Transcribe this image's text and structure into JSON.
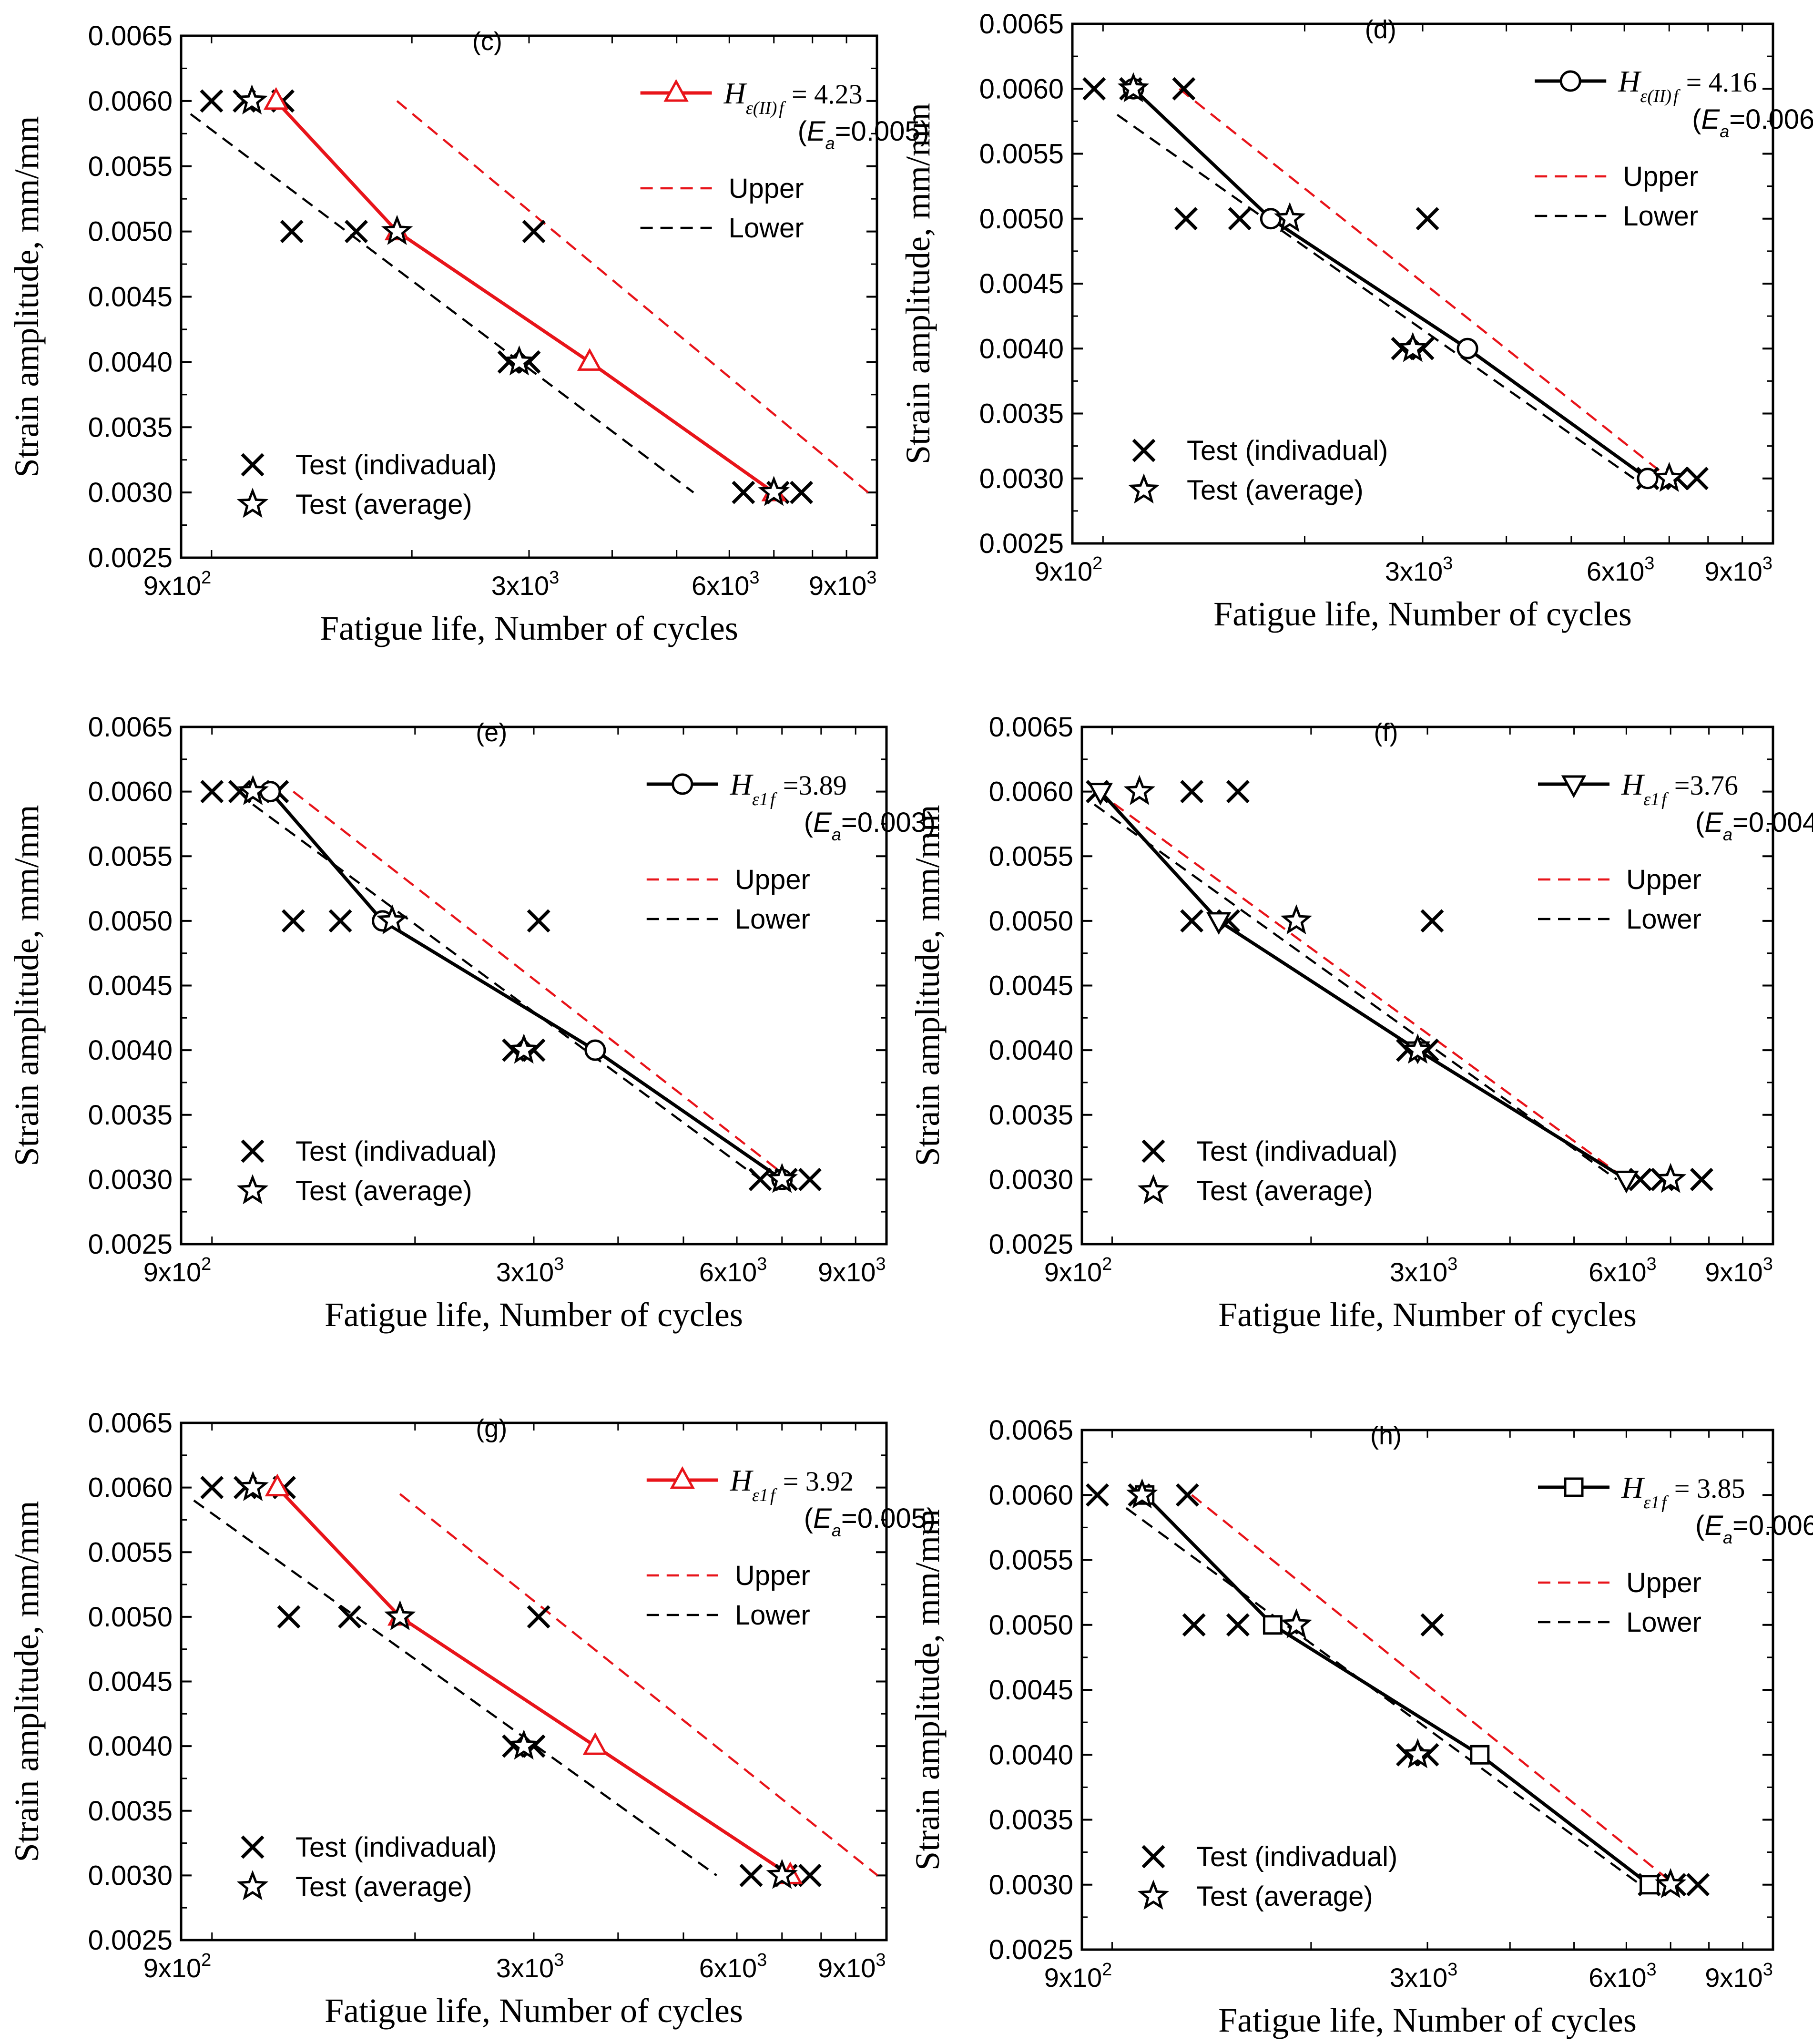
{
  "figure": {
    "shared": {
      "xlabel": "Fatigue life, Number of cycles",
      "ylabel": "Strain amplitude,  mm/mm",
      "ytick_labels": [
        "0.0025",
        "0.0030",
        "0.0035",
        "0.0040",
        "0.0045",
        "0.0050",
        "0.0055",
        "0.0060",
        "0.0065"
      ],
      "xtick_labels": [
        "9x10",
        "3x10",
        "6x10",
        "9x10"
      ],
      "xtick_exponents": [
        "2",
        "3",
        "3",
        "3"
      ],
      "legend_test_individual": "Test (indivadual)",
      "legend_test_average": "Test (average)",
      "legend_upper": "Upper",
      "legend_lower": "Lower",
      "ea_prefix": "(",
      "ea_symbol": "E",
      "ea_sub": "a",
      "ea_suffix": ")",
      "model_symbol": "H",
      "colors": {
        "black": "#000000",
        "red": "#e8141a"
      }
    }
  },
  "chart_data": [
    {
      "panel": "(c)",
      "type": "line",
      "xscale": "log",
      "xlim": [
        900,
        10000
      ],
      "ylim": [
        0.0025,
        0.0065
      ],
      "xlabel": "Fatigue life, Number of cycles",
      "ylabel": "Strain amplitude,  mm/mm",
      "model": {
        "label_sub": "ε(II)",
        "label_sub_tail": "f",
        "value": "= 4.23",
        "ea": "=0.005",
        "color": "red",
        "marker": "triangle-up",
        "x": [
          1250,
          1900,
          3700,
          7000
        ],
        "y": [
          0.006,
          0.005,
          0.004,
          0.003
        ]
      },
      "upper": {
        "x": [
          1900,
          9700
        ],
        "y": [
          0.006,
          0.003
        ]
      },
      "lower": {
        "x": [
          930,
          5300
        ],
        "y": [
          0.0059,
          0.003
        ]
      },
      "test_individual": {
        "x": [
          1000,
          1120,
          1280,
          1320,
          1650,
          3050,
          2800,
          3000,
          6300,
          7100,
          7700
        ],
        "y": [
          0.006,
          0.006,
          0.006,
          0.005,
          0.005,
          0.005,
          0.004,
          0.004,
          0.003,
          0.003,
          0.003
        ]
      },
      "test_average": {
        "x": [
          1150,
          1900,
          2900,
          7000
        ],
        "y": [
          0.006,
          0.005,
          0.004,
          0.003
        ]
      }
    },
    {
      "panel": "(d)",
      "type": "line",
      "xscale": "log",
      "xlim": [
        900,
        10000
      ],
      "ylim": [
        0.0025,
        0.0065
      ],
      "xlabel": "Fatigue life, Number of cycles",
      "ylabel": "Strain amplitude,  mm/mm",
      "model": {
        "label_sub": "ε(II)",
        "label_sub_tail": "f",
        "value": "= 4.16",
        "ea": "=0.006",
        "color": "black",
        "marker": "circle",
        "x": [
          1110,
          1780,
          3500,
          6500
        ],
        "y": [
          0.006,
          0.005,
          0.004,
          0.003
        ]
      },
      "upper": {
        "x": [
          1300,
          7000
        ],
        "y": [
          0.006,
          0.003
        ]
      },
      "lower": {
        "x": [
          1050,
          6200
        ],
        "y": [
          0.0058,
          0.003
        ]
      },
      "test_individual": {
        "x": [
          970,
          1100,
          1320,
          1330,
          1600,
          3050,
          2800,
          3000,
          6500,
          7200,
          7700
        ],
        "y": [
          0.006,
          0.006,
          0.006,
          0.005,
          0.005,
          0.005,
          0.004,
          0.004,
          0.003,
          0.003,
          0.003
        ]
      },
      "test_average": {
        "x": [
          1110,
          1900,
          2900,
          7000
        ],
        "y": [
          0.006,
          0.005,
          0.004,
          0.003
        ]
      }
    },
    {
      "panel": "(e)",
      "type": "line",
      "xscale": "log",
      "xlim": [
        900,
        10000
      ],
      "ylim": [
        0.0025,
        0.0065
      ],
      "xlabel": "Fatigue life, Number of cycles",
      "ylabel": "Strain amplitude,  mm/mm",
      "model": {
        "label_sub": "ε1",
        "label_sub_tail": "f",
        "value": "=3.89",
        "ea": "=0.003",
        "color": "black",
        "marker": "circle",
        "x": [
          1220,
          1790,
          3700,
          7000
        ],
        "y": [
          0.006,
          0.005,
          0.004,
          0.003
        ]
      },
      "upper": {
        "x": [
          1320,
          7200
        ],
        "y": [
          0.006,
          0.003
        ]
      },
      "lower": {
        "x": [
          1150,
          6500
        ],
        "y": [
          0.0059,
          0.003
        ]
      },
      "test_individual": {
        "x": [
          1000,
          1100,
          1250,
          1320,
          1550,
          3050,
          2800,
          3000,
          6500,
          7100,
          7700
        ],
        "y": [
          0.006,
          0.006,
          0.006,
          0.005,
          0.005,
          0.005,
          0.004,
          0.004,
          0.003,
          0.003,
          0.003
        ]
      },
      "test_average": {
        "x": [
          1150,
          1850,
          2900,
          7000
        ],
        "y": [
          0.006,
          0.005,
          0.004,
          0.003
        ]
      }
    },
    {
      "panel": "(f)",
      "type": "line",
      "xscale": "log",
      "xlim": [
        900,
        10000
      ],
      "ylim": [
        0.0025,
        0.0065
      ],
      "xlabel": "Fatigue life, Number of cycles",
      "ylabel": "Strain amplitude,  mm/mm",
      "model": {
        "label_sub": "ε1",
        "label_sub_tail": "f",
        "value": "=3.76",
        "ea": "=0.004",
        "color": "black",
        "marker": "triangle-down",
        "x": [
          960,
          1450,
          2900,
          6000
        ],
        "y": [
          0.006,
          0.005,
          0.004,
          0.003
        ]
      },
      "upper": {
        "x": [
          950,
          6000
        ],
        "y": [
          0.006,
          0.003
        ]
      },
      "lower": {
        "x": [
          940,
          5800
        ],
        "y": [
          0.0059,
          0.003
        ]
      },
      "test_individual": {
        "x": [
          950,
          1320,
          1550,
          1320,
          1500,
          3050,
          2800,
          3000,
          6300,
          6800,
          7800
        ],
        "y": [
          0.006,
          0.006,
          0.006,
          0.005,
          0.005,
          0.005,
          0.004,
          0.004,
          0.003,
          0.003,
          0.003
        ]
      },
      "test_average": {
        "x": [
          1100,
          1900,
          2900,
          7000
        ],
        "y": [
          0.006,
          0.005,
          0.004,
          0.003
        ]
      }
    },
    {
      "panel": "(g)",
      "type": "line",
      "xscale": "log",
      "xlim": [
        900,
        10000
      ],
      "ylim": [
        0.0025,
        0.0065
      ],
      "xlabel": "Fatigue life, Number of cycles",
      "ylabel": "Strain amplitude,  mm/mm",
      "model": {
        "label_sub": "ε1",
        "label_sub_tail": "f",
        "value": "= 3.92",
        "ea": "=0.005",
        "color": "red",
        "marker": "triangle-up",
        "x": [
          1250,
          1900,
          3700,
          7200
        ],
        "y": [
          0.006,
          0.005,
          0.004,
          0.003
        ]
      },
      "upper": {
        "x": [
          1900,
          9700
        ],
        "y": [
          0.00595,
          0.003
        ]
      },
      "lower": {
        "x": [
          940,
          5600
        ],
        "y": [
          0.0059,
          0.003
        ]
      },
      "test_individual": {
        "x": [
          1000,
          1120,
          1280,
          1300,
          1600,
          3050,
          2800,
          3000,
          6300,
          7100,
          7700
        ],
        "y": [
          0.006,
          0.006,
          0.006,
          0.005,
          0.005,
          0.005,
          0.004,
          0.004,
          0.003,
          0.003,
          0.003
        ]
      },
      "test_average": {
        "x": [
          1150,
          1900,
          2900,
          7000
        ],
        "y": [
          0.006,
          0.005,
          0.004,
          0.003
        ]
      }
    },
    {
      "panel": "(h)",
      "type": "line",
      "xscale": "log",
      "xlim": [
        900,
        10000
      ],
      "ylim": [
        0.0025,
        0.0065
      ],
      "xlabel": "Fatigue life, Number of cycles",
      "ylabel": "Strain amplitude,  mm/mm",
      "model": {
        "label_sub": "ε1",
        "label_sub_tail": "f",
        "value": "= 3.85",
        "ea": "=0.006",
        "color": "black",
        "marker": "square",
        "x": [
          1120,
          1750,
          3600,
          6500
        ],
        "y": [
          0.006,
          0.005,
          0.004,
          0.003
        ]
      },
      "upper": {
        "x": [
          1320,
          7100
        ],
        "y": [
          0.006,
          0.003
        ]
      },
      "lower": {
        "x": [
          1050,
          6300
        ],
        "y": [
          0.0059,
          0.003
        ]
      },
      "test_individual": {
        "x": [
          950,
          1100,
          1300,
          1330,
          1550,
          3050,
          2800,
          3000,
          6500,
          7100,
          7700
        ],
        "y": [
          0.006,
          0.006,
          0.006,
          0.005,
          0.005,
          0.005,
          0.004,
          0.004,
          0.003,
          0.003,
          0.003
        ]
      },
      "test_average": {
        "x": [
          1110,
          1900,
          2900,
          7000
        ],
        "y": [
          0.006,
          0.005,
          0.004,
          0.003
        ]
      }
    }
  ]
}
